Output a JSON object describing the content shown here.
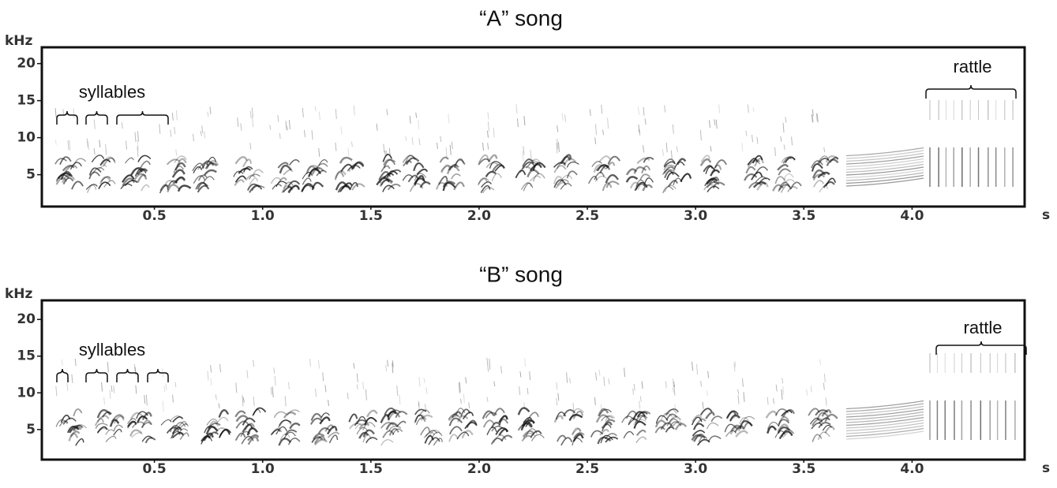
{
  "chart_data": [
    {
      "type": "spectrogram",
      "title": "“A” song",
      "y_label": "kHz",
      "x_label": "s",
      "xlim": [
        -0.02,
        4.52
      ],
      "ylim": [
        0.7,
        22.2
      ],
      "xticks": [
        {
          "value": 0.5,
          "label": "0.5"
        },
        {
          "value": 1,
          "label": "1.0"
        },
        {
          "value": 1.5,
          "label": "1.5"
        },
        {
          "value": 2,
          "label": "2.0"
        },
        {
          "value": 2.5,
          "label": "2.5"
        },
        {
          "value": 3,
          "label": "3.0"
        },
        {
          "value": 3.5,
          "label": "3.5"
        },
        {
          "value": 4,
          "label": "4.0"
        }
      ],
      "yticks": [
        5,
        10,
        15,
        20
      ],
      "annotations": [
        "syllables",
        "rattle"
      ]
    },
    {
      "type": "spectrogram",
      "title": "“B” song",
      "y_label": "kHz",
      "x_label": "s",
      "xlim": [
        -0.02,
        4.52
      ],
      "ylim": [
        0.9,
        22.6
      ],
      "xticks": [
        {
          "value": 0.5,
          "label": "0.5"
        },
        {
          "value": 1,
          "label": "1.0"
        },
        {
          "value": 1.5,
          "label": "1.5"
        },
        {
          "value": 2,
          "label": "2.0"
        },
        {
          "value": 2.5,
          "label": "2.5"
        },
        {
          "value": 3,
          "label": "3.0"
        },
        {
          "value": 3.5,
          "label": "3.5"
        },
        {
          "value": 4,
          "label": "4.0"
        }
      ],
      "yticks": [
        5,
        10,
        15,
        20
      ],
      "annotations": [
        "syllables",
        "rattle"
      ]
    }
  ]
}
